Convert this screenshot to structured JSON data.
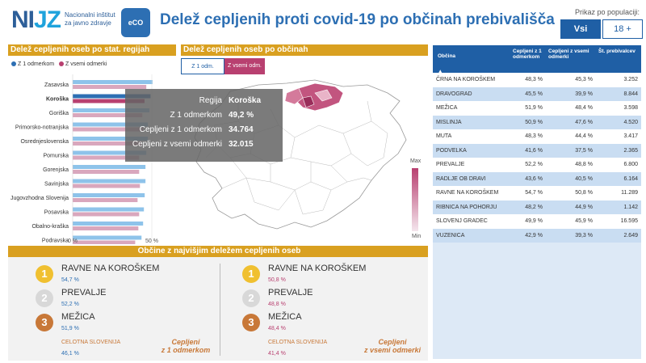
{
  "header": {
    "logo_main": "NI",
    "logo_j": "JZ",
    "logo_sub_line1": "Nacionalni inštitut",
    "logo_sub_line2": "za javno zdravje",
    "eco_logo": "eCO",
    "title": "Delež cepljenih proti covid-19 po občinah prebivališča",
    "population_label": "Prikaz po populaciji:",
    "pop_btn_all": "Vsi",
    "pop_btn_18": "18 +"
  },
  "regions_section": {
    "title": "Delež cepljenih oseb po stat. regijah",
    "legend_1": "Z 1 odmerkom",
    "legend_2": "Z vsemi odmerki",
    "axis_0": "0 %",
    "axis_50": "50 %"
  },
  "chart_data": {
    "type": "bar",
    "orientation": "horizontal",
    "categories": [
      "Zasavska",
      "Koroška",
      "Goriška",
      "Primorsko-notranjska",
      "Osrednjeslovenska",
      "Pomurska",
      "Gorenjska",
      "Savinjska",
      "Jugovzhodna Slovenija",
      "Posavska",
      "Obalno-kraška",
      "Podravska"
    ],
    "series": [
      {
        "name": "Z 1 odmerkom",
        "color": "#8ec3ea",
        "values": [
          50.5,
          49.2,
          48.5,
          47.5,
          47.5,
          46.5,
          46.0,
          46.0,
          45.5,
          45.0,
          44.5,
          43.5
        ]
      },
      {
        "name": "Z vsemi odmerki",
        "color": "#d9a7bd",
        "values": [
          46.5,
          45.4,
          44.0,
          44.5,
          43.5,
          42.0,
          42.0,
          42.5,
          41.0,
          42.0,
          41.5,
          39.5
        ]
      }
    ],
    "highlight": "Koroška",
    "highlight_colors": [
      "#2d6fb3",
      "#b84070"
    ],
    "xlim": [
      0,
      100
    ],
    "xticks": [
      "0 %",
      "50 %"
    ]
  },
  "map_section": {
    "title": "Delež cepljenih oseb po občinah",
    "btn_1": "Z 1 odm.",
    "btn_all": "Z vsemi odm.",
    "scale_max": "Max",
    "scale_min": "Min"
  },
  "tooltip": {
    "rows": [
      {
        "k": "Regija",
        "v": "Koroška"
      },
      {
        "k": "Z 1 odmerkom",
        "v": "49,2 %"
      },
      {
        "k": "Cepljeni z 1 odmerkom",
        "v": "34.764"
      },
      {
        "k": "Cepljeni z vsemi odmerki",
        "v": "32.015"
      }
    ]
  },
  "table": {
    "headers": [
      "Občina",
      "Cepljeni z 1 odmerkom",
      "Cepljeni z vsemi odmerki",
      "Št. prebivalcev"
    ],
    "sort_icon": "▲",
    "rows": [
      [
        "ČRNA NA KOROŠKEM",
        "48,3 %",
        "45,3 %",
        "3.252"
      ],
      [
        "DRAVOGRAD",
        "45,5 %",
        "39,9 %",
        "8.844"
      ],
      [
        "MEŽICA",
        "51,9 %",
        "48,4 %",
        "3.598"
      ],
      [
        "MISLINJA",
        "50,9 %",
        "47,6 %",
        "4.520"
      ],
      [
        "MUTA",
        "48,3 %",
        "44,4 %",
        "3.417"
      ],
      [
        "PODVELKA",
        "41,6 %",
        "37,5 %",
        "2.365"
      ],
      [
        "PREVALJE",
        "52,2 %",
        "48,8 %",
        "6.800"
      ],
      [
        "RADLJE OB DRAVI",
        "43,6 %",
        "40,5 %",
        "6.164"
      ],
      [
        "RAVNE NA KOROŠKEM",
        "54,7 %",
        "50,8 %",
        "11.289"
      ],
      [
        "RIBNICA NA POHORJU",
        "48,2 %",
        "44,9 %",
        "1.142"
      ],
      [
        "SLOVENJ GRADEC",
        "49,9 %",
        "45,9 %",
        "16.595"
      ],
      [
        "VUZENICA",
        "42,9 %",
        "39,3 %",
        "2.649"
      ]
    ]
  },
  "top_section": {
    "title": "Občine z najvišjim deležem cepljenih oseb",
    "left": {
      "items": [
        {
          "rank": "1",
          "name": "RAVNE NA KOROŠKEM",
          "value": "54,7 %"
        },
        {
          "rank": "2",
          "name": "PREVALJE",
          "value": "52,2 %"
        },
        {
          "rank": "3",
          "name": "MEŽICA",
          "value": "51,9 %"
        }
      ],
      "total_label": "CELOTNA SLOVENIJA",
      "total_value": "46,1 %",
      "caption_1": "Cepljeni",
      "caption_2": "z 1 odmerkom"
    },
    "right": {
      "items": [
        {
          "rank": "1",
          "name": "RAVNE NA KOROŠKEM",
          "value": "50,8 %"
        },
        {
          "rank": "2",
          "name": "PREVALJE",
          "value": "48,8 %"
        },
        {
          "rank": "3",
          "name": "MEŽICA",
          "value": "48,4 %"
        }
      ],
      "total_label": "CELOTNA SLOVENIJA",
      "total_value": "41,4 %",
      "caption_1": "Cepljeni",
      "caption_2": "z vsemi odmerki"
    },
    "rank_colors": [
      "#f0c030",
      "#d8d8d8",
      "#c87838"
    ]
  }
}
